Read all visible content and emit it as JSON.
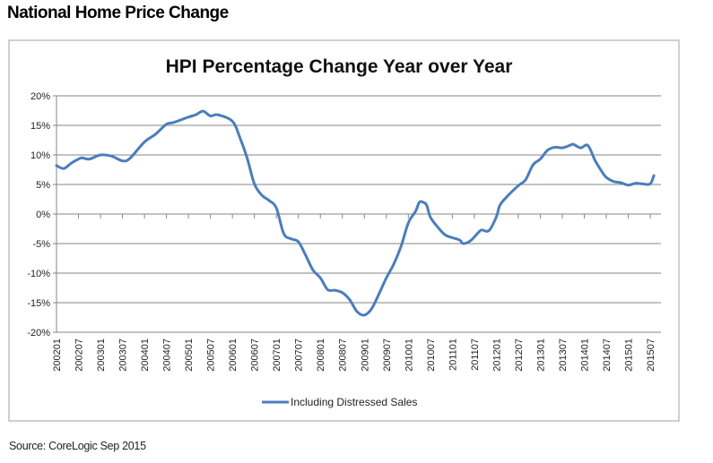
{
  "page": {
    "title": "National Home Price Change",
    "source": "Source: CoreLogic Sep 2015"
  },
  "colors": {
    "series": "#4a7ebb",
    "grid": "#868686",
    "border": "#a0a0a0"
  },
  "chart_data": {
    "type": "line",
    "title": "HPI Percentage Change Year over Year",
    "xlabel": "",
    "ylabel": "",
    "ylim": [
      -20,
      20
    ],
    "y_ticks": [
      "20%",
      "15%",
      "10%",
      "5%",
      "0%",
      "-5%",
      "-10%",
      "-15%",
      "-20%"
    ],
    "y_tick_values": [
      20,
      15,
      10,
      5,
      0,
      -5,
      -10,
      -15,
      -20
    ],
    "x_ticks": [
      "200201",
      "200207",
      "200301",
      "200307",
      "200401",
      "200407",
      "200501",
      "200507",
      "200601",
      "200607",
      "200701",
      "200707",
      "200801",
      "200807",
      "200901",
      "200907",
      "201001",
      "201007",
      "201101",
      "201107",
      "201201",
      "201207",
      "201301",
      "201307",
      "201401",
      "201407",
      "201501",
      "201507"
    ],
    "grid": true,
    "legend_position": "bottom",
    "series": [
      {
        "name": "Including Distressed Sales",
        "points": [
          [
            "200201",
            8.2
          ],
          [
            "200203",
            7.7
          ],
          [
            "200205",
            8.6
          ],
          [
            "200207",
            9.3
          ],
          [
            "200208",
            9.5
          ],
          [
            "200210",
            9.3
          ],
          [
            "200301",
            10.0
          ],
          [
            "200304",
            9.8
          ],
          [
            "200307",
            9.0
          ],
          [
            "200309",
            9.4
          ],
          [
            "200401",
            12.2
          ],
          [
            "200404",
            13.5
          ],
          [
            "200407",
            15.2
          ],
          [
            "200409",
            15.5
          ],
          [
            "200501",
            16.4
          ],
          [
            "200503",
            16.8
          ],
          [
            "200505",
            17.4
          ],
          [
            "200507",
            16.6
          ],
          [
            "200509",
            16.8
          ],
          [
            "200601",
            15.7
          ],
          [
            "200603",
            13.0
          ],
          [
            "200605",
            9.5
          ],
          [
            "200607",
            5.1
          ],
          [
            "200609",
            3.2
          ],
          [
            "200611",
            2.3
          ],
          [
            "200701",
            1.0
          ],
          [
            "200703",
            -3.3
          ],
          [
            "200705",
            -4.2
          ],
          [
            "200707",
            -4.7
          ],
          [
            "200709",
            -7.0
          ],
          [
            "200711",
            -9.5
          ],
          [
            "200801",
            -10.8
          ],
          [
            "200803",
            -12.8
          ],
          [
            "200805",
            -12.9
          ],
          [
            "200807",
            -13.3
          ],
          [
            "200809",
            -14.5
          ],
          [
            "200811",
            -16.5
          ],
          [
            "200901",
            -17.1
          ],
          [
            "200903",
            -16.0
          ],
          [
            "200905",
            -13.5
          ],
          [
            "200907",
            -10.8
          ],
          [
            "200909",
            -8.5
          ],
          [
            "200911",
            -5.5
          ],
          [
            "201001",
            -1.5
          ],
          [
            "201003",
            0.5
          ],
          [
            "201004",
            2.0
          ],
          [
            "201005",
            2.0
          ],
          [
            "201006",
            1.5
          ],
          [
            "201007",
            -0.5
          ],
          [
            "201009",
            -2.2
          ],
          [
            "201011",
            -3.5
          ],
          [
            "201101",
            -4.0
          ],
          [
            "201103",
            -4.4
          ],
          [
            "201104",
            -5.0
          ],
          [
            "201106",
            -4.5
          ],
          [
            "201108",
            -3.2
          ],
          [
            "201109",
            -2.7
          ],
          [
            "201111",
            -2.8
          ],
          [
            "201201",
            -0.5
          ],
          [
            "201202",
            1.5
          ],
          [
            "201204",
            3.0
          ],
          [
            "201207",
            4.8
          ],
          [
            "201209",
            5.8
          ],
          [
            "201211",
            8.3
          ],
          [
            "201301",
            9.3
          ],
          [
            "201303",
            10.8
          ],
          [
            "201305",
            11.3
          ],
          [
            "201307",
            11.2
          ],
          [
            "201309",
            11.6
          ],
          [
            "201310",
            11.8
          ],
          [
            "201312",
            11.2
          ],
          [
            "201402",
            11.6
          ],
          [
            "201404",
            9.0
          ],
          [
            "201406",
            7.0
          ],
          [
            "201407",
            6.2
          ],
          [
            "201409",
            5.5
          ],
          [
            "201411",
            5.3
          ],
          [
            "201501",
            4.9
          ],
          [
            "201503",
            5.2
          ],
          [
            "201505",
            5.1
          ],
          [
            "201507",
            5.1
          ],
          [
            "201508",
            6.5
          ]
        ]
      }
    ]
  }
}
